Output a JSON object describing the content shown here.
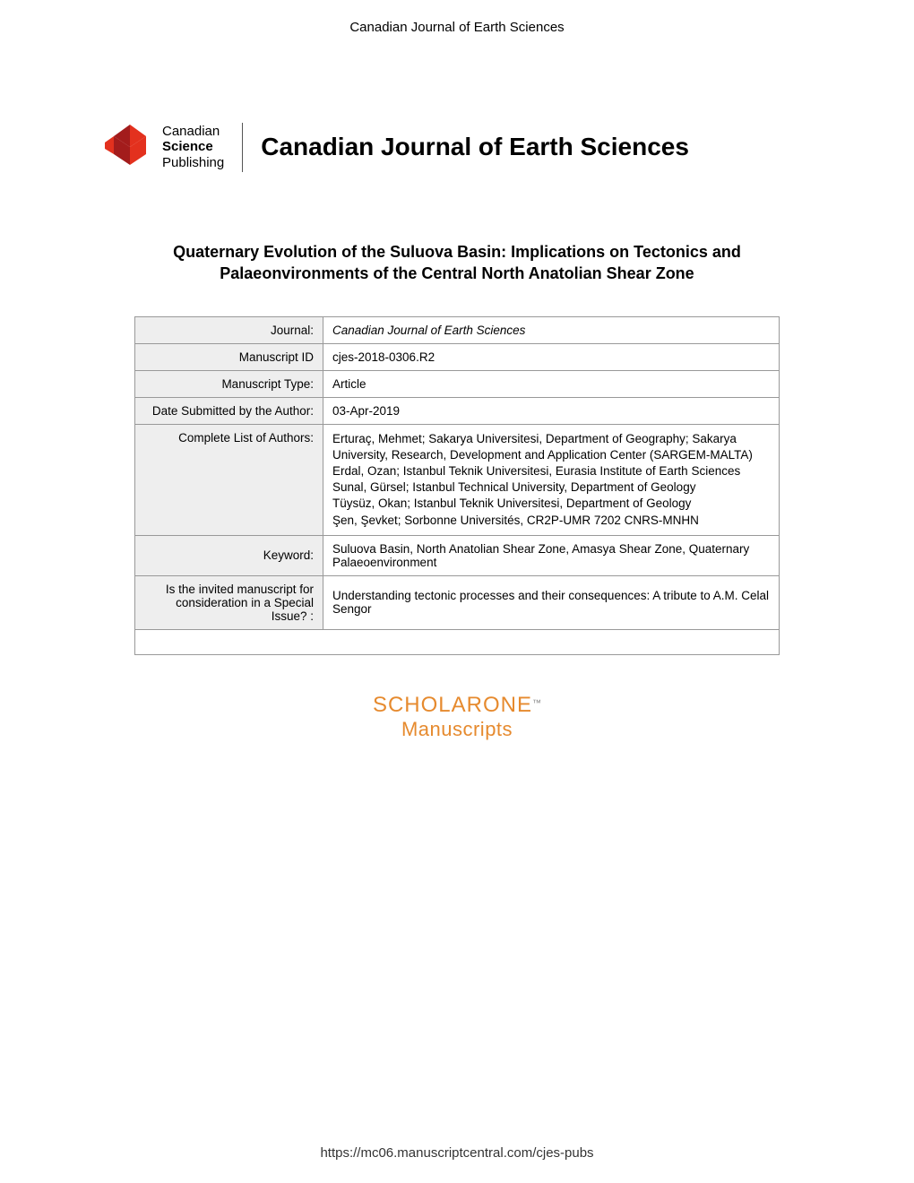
{
  "header_label": "Canadian Journal of Earth Sciences",
  "logo": {
    "line1": "Canadian",
    "line2": "Science",
    "line3": "Publishing"
  },
  "journal_banner": "Canadian Journal of Earth Sciences",
  "paper_title": "Quaternary Evolution of the Suluova Basin: Implications on Tectonics and Palaeonvironments of the Central North Anatolian Shear Zone",
  "table": {
    "journal_label": "Journal:",
    "journal_value": "Canadian Journal of Earth Sciences",
    "manuscript_id_label": "Manuscript ID",
    "manuscript_id_value": "cjes-2018-0306.R2",
    "manuscript_type_label": "Manuscript Type:",
    "manuscript_type_value": "Article",
    "date_submitted_label": "Date Submitted by the Author:",
    "date_submitted_value": "03-Apr-2019",
    "authors_label": "Complete List of Authors:",
    "authors": [
      "Erturaç, Mehmet; Sakarya Universitesi, Department of Geography; Sakarya University, Research, Development and Application Center (SARGEM-MALTA)",
      "Erdal, Ozan; Istanbul Teknik Universitesi, Eurasia Institute of Earth Sciences",
      "Sunal, Gürsel; Istanbul Technical University, Department of Geology",
      "Tüysüz, Okan; Istanbul Teknik Universitesi, Department of Geology",
      "Şen, Şevket; Sorbonne Universités, CR2P-UMR 7202 CNRS-MNHN"
    ],
    "keyword_label": "Keyword:",
    "keyword_value": "Suluova Basin, North Anatolian Shear Zone, Amasya Shear Zone, Quaternary Palaeoenvironment",
    "special_issue_label": "Is the invited manuscript for consideration in a Special Issue? :",
    "special_issue_value": "Understanding tectonic processes and their consequences: A tribute to A.M. Celal Sengor"
  },
  "scholarone": {
    "main": "SCHOLARONE",
    "tm": "™",
    "sub": "Manuscripts"
  },
  "footer_url": "https://mc06.manuscriptcentral.com/cjes-pubs",
  "colors": {
    "logo_red_dark": "#a31c1c",
    "logo_red_light": "#e3311e",
    "scholarone_orange": "#e68a2e",
    "table_header_bg": "#eeeeee",
    "table_border": "#999999"
  }
}
